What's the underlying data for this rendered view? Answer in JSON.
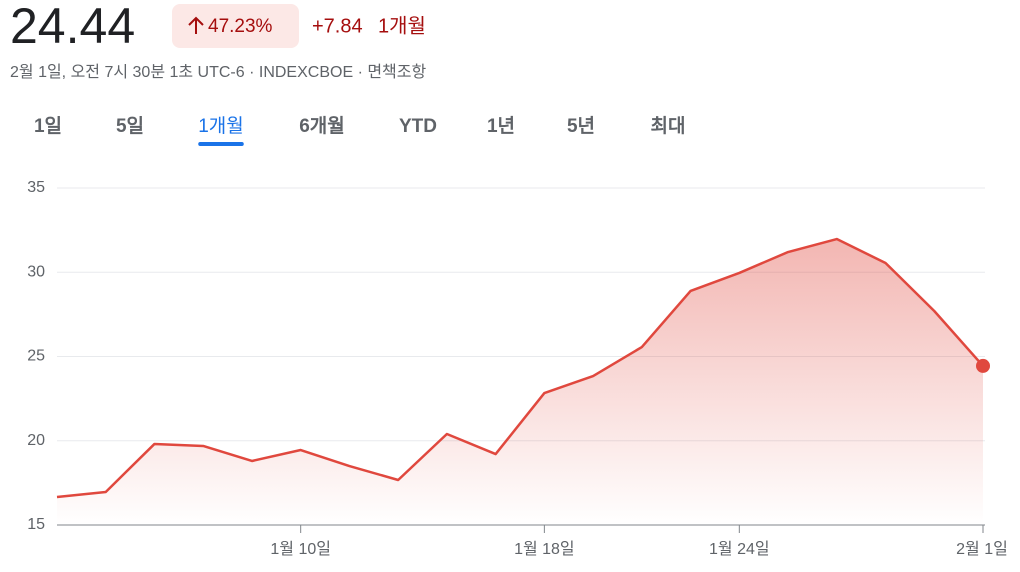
{
  "header": {
    "price": "24.44",
    "change_percent": "47.23%",
    "change": "+7.84",
    "period": "1개월",
    "subtitle": "2월 1일, 오전 7시 30분 1초 UTC-6 · INDEXCBOE · 면책조항",
    "tabs": [
      "1일",
      "5일",
      "1개월",
      "6개월",
      "YTD",
      "1년",
      "5년",
      "최대"
    ],
    "active_tab": 2
  },
  "chart_data": {
    "type": "line",
    "categories": [
      null,
      null,
      null,
      null,
      null,
      "1월 10일",
      null,
      null,
      null,
      null,
      "1월 18일",
      null,
      null,
      null,
      "1월 24일",
      null,
      null,
      null,
      null,
      "2월 1일"
    ],
    "series": [
      {
        "color": "#e0483e",
        "values": [
          16.66,
          16.96,
          19.81,
          19.69,
          18.8,
          19.45,
          18.5,
          17.67,
          20.4,
          19.21,
          22.83,
          23.84,
          25.56,
          28.89,
          29.96,
          31.2,
          31.97,
          30.55,
          27.7,
          24.44
        ]
      }
    ],
    "ylim": [
      15,
      35
    ],
    "yticks": [
      15,
      20,
      25,
      30,
      35
    ],
    "grid": true
  }
}
